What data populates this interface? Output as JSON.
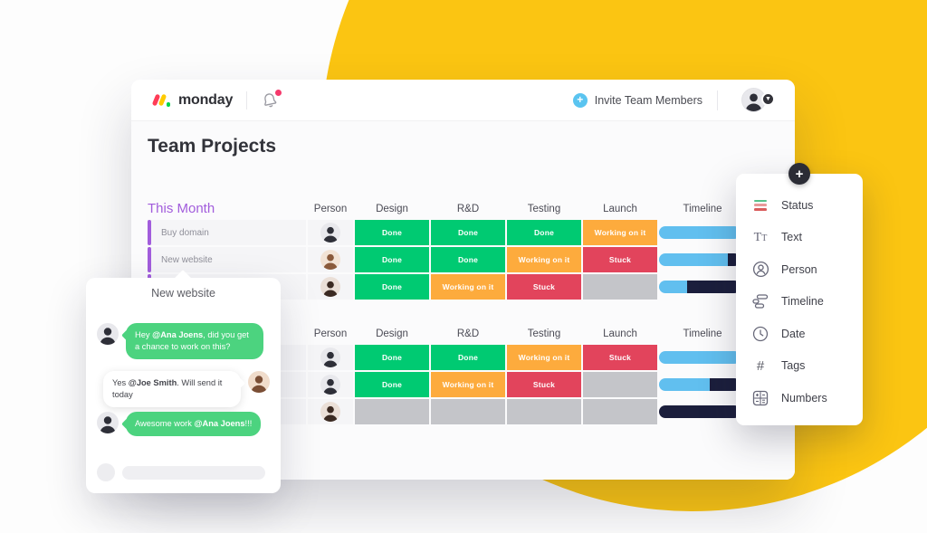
{
  "page_title": "Team Projects",
  "header": {
    "logo_text": "monday",
    "invite_label": "Invite Team Members"
  },
  "board": {
    "group_color": "#A25DDC",
    "status_colors": {
      "Done": "#00CA72",
      "Working on it": "#FDAB3D",
      "Stuck": "#E2445C",
      "empty": "#C4C5C9"
    },
    "timeline_colors": {
      "blue": "#61BFEF",
      "navy": "#1B1E3C"
    },
    "groups": [
      {
        "title": "This Month",
        "columns": [
          "Person",
          "Design",
          "R&D",
          "Testing",
          "Launch",
          "Timeline"
        ],
        "rows": [
          {
            "name": "Buy domain",
            "person": "male-dark",
            "statuses": [
              "Done",
              "Done",
              "Done",
              "Working on it"
            ],
            "timeline": [
              {
                "color": "blue",
                "pct": 100
              }
            ]
          },
          {
            "name": "New website",
            "person": "male-tan",
            "statuses": [
              "Done",
              "Done",
              "Working on it",
              "Stuck"
            ],
            "timeline": [
              {
                "color": "blue",
                "pct": 84
              },
              {
                "color": "navy",
                "pct": 16
              }
            ]
          },
          {
            "name": "",
            "person": "female-brunette",
            "statuses": [
              "Done",
              "Working on it",
              "Stuck",
              ""
            ],
            "timeline": [
              {
                "color": "blue",
                "pct": 34
              },
              {
                "color": "navy",
                "pct": 66
              }
            ]
          }
        ]
      },
      {
        "title": "",
        "columns": [
          "Person",
          "Design",
          "R&D",
          "Testing",
          "Launch",
          "Timeline"
        ],
        "rows": [
          {
            "name": "",
            "person": "male-dark",
            "statuses": [
              "Done",
              "Done",
              "Working on it",
              "Stuck"
            ],
            "timeline": [
              {
                "color": "blue",
                "pct": 100
              }
            ]
          },
          {
            "name": "",
            "person": "male-dark",
            "statuses": [
              "Done",
              "Working on it",
              "Stuck",
              ""
            ],
            "timeline": [
              {
                "color": "blue",
                "pct": 62
              },
              {
                "color": "navy",
                "pct": 38
              }
            ]
          },
          {
            "name": "",
            "person": "female-brunette",
            "statuses": [
              "",
              "",
              "",
              ""
            ],
            "timeline": [
              {
                "color": "navy",
                "pct": 100
              }
            ]
          }
        ]
      }
    ]
  },
  "chat_popup": {
    "title": "New website",
    "messages": [
      {
        "side": "left",
        "style": "green",
        "avatar": "male-dark",
        "parts": [
          {
            "t": "Hey ",
            "b": false
          },
          {
            "t": "@Ana Joens",
            "b": true
          },
          {
            "t": ", did you get a chance to work on this?",
            "b": false
          }
        ]
      },
      {
        "side": "right",
        "style": "white",
        "avatar": "female-light",
        "parts": [
          {
            "t": "Yes ",
            "b": false
          },
          {
            "t": "@Joe Smith",
            "b": true
          },
          {
            "t": ". Will send it today",
            "b": false
          }
        ]
      },
      {
        "side": "left",
        "style": "green",
        "avatar": "male-dark",
        "parts": [
          {
            "t": "Awesome work ",
            "b": false
          },
          {
            "t": "@Ana Joens",
            "b": true
          },
          {
            "t": "!!!",
            "b": false
          }
        ]
      }
    ]
  },
  "add_column_panel": {
    "plus_label": "+",
    "items": [
      {
        "label": "Status",
        "icon": "status-icon"
      },
      {
        "label": "Text",
        "icon": "text-icon"
      },
      {
        "label": "Person",
        "icon": "person-icon"
      },
      {
        "label": "Timeline",
        "icon": "timeline-icon"
      },
      {
        "label": "Date",
        "icon": "date-icon"
      },
      {
        "label": "Tags",
        "icon": "tags-icon"
      },
      {
        "label": "Numbers",
        "icon": "numbers-icon"
      }
    ]
  },
  "avatars": {
    "male-dark": {
      "bg": "#E8E8EC",
      "fg": "#2E2F38"
    },
    "male-tan": {
      "bg": "#F2E3D5",
      "fg": "#8A5A3B"
    },
    "female-brunette": {
      "bg": "#EADFD7",
      "fg": "#3B2A22"
    },
    "female-light": {
      "bg": "#F0DCCB",
      "fg": "#7A4E35"
    }
  },
  "colors": {
    "brand_yellow": "#FBC512",
    "logo_red": "#FF3D57",
    "logo_yellow": "#FFCB00",
    "logo_green": "#00D647",
    "notification_dot": "#F5396B",
    "invite_blue": "#5AC4F0",
    "bubble_green": "#4CD37F",
    "panel_plus_bg": "#2B2C35",
    "status_icon_colors": [
      "#57C28A",
      "#E89A9A",
      "#D95C5C"
    ]
  }
}
